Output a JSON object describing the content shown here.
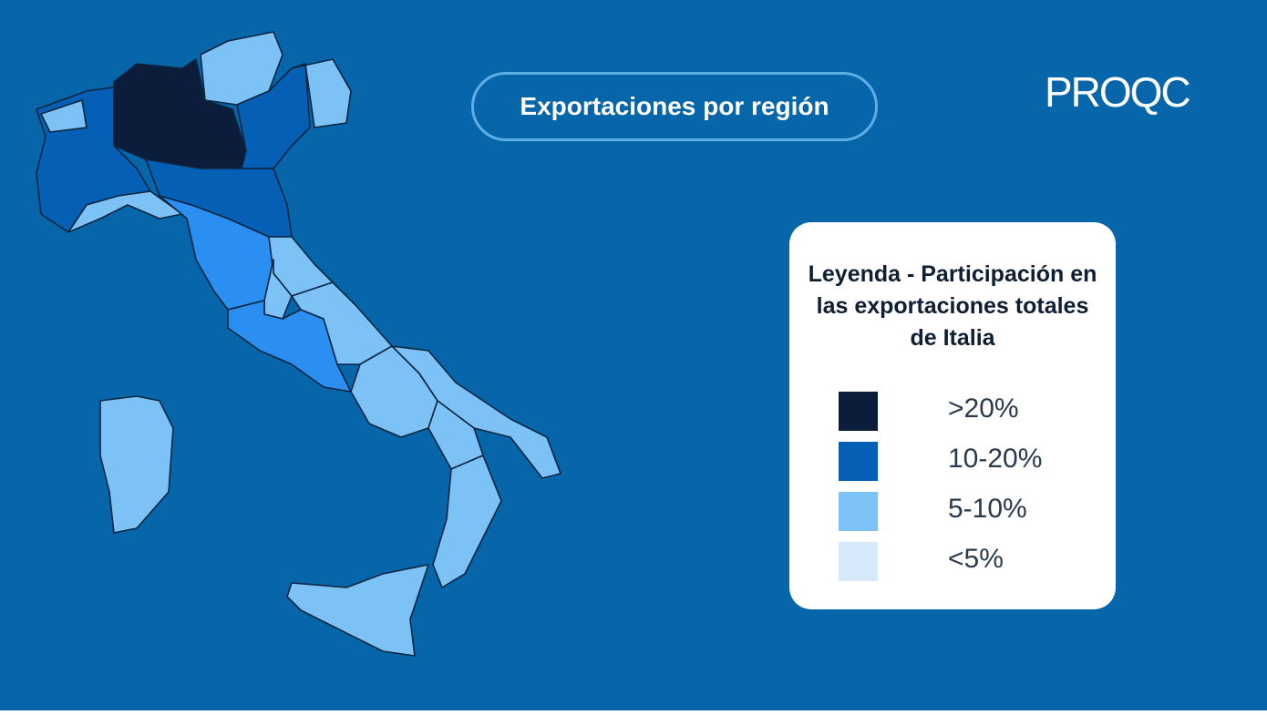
{
  "header": {
    "title": "Exportaciones por región",
    "logo": "PROQC"
  },
  "legend": {
    "title": "Leyenda - Participación en las exportaciones totales de Italia",
    "items": [
      {
        "label": ">20%",
        "color": "#0b1d3a"
      },
      {
        "label": "10-20%",
        "color": "#0560b5"
      },
      {
        "label": "5-10%",
        "color": "#7cc2f7"
      },
      {
        "label": "<5%",
        "color": "#d6e9fb"
      }
    ]
  }
}
